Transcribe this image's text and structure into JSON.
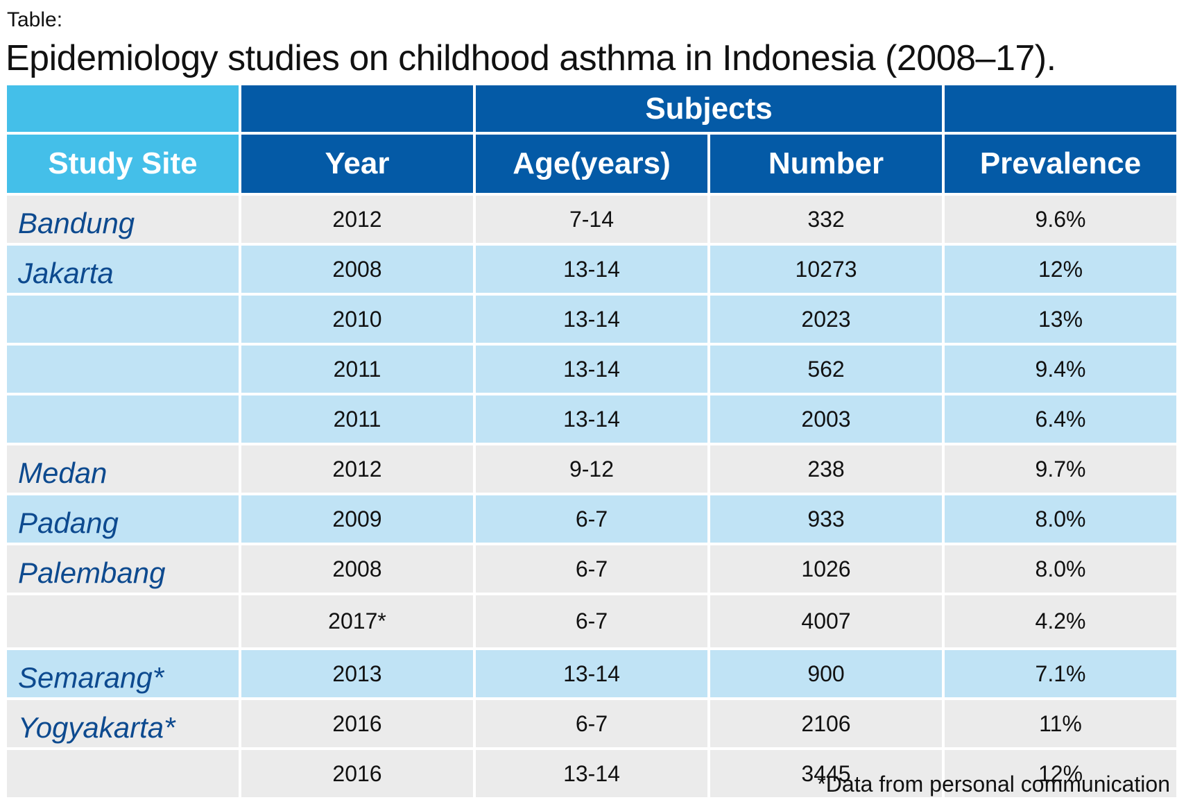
{
  "label": "Table:",
  "title": "Epidemiology studies on childhood asthma in Indonesia (2008–17).",
  "header": {
    "group_label": "Subjects",
    "columns": [
      "Study Site",
      "Year",
      "Age(years)",
      "Number",
      "Prevalence"
    ]
  },
  "rows": [
    {
      "site": "Bandung",
      "year": "2012",
      "age": "7-14",
      "number": "332",
      "prevalence": "9.6%"
    },
    {
      "site": "Jakarta",
      "year": "2008",
      "age": "13-14",
      "number": "10273",
      "prevalence": "12%"
    },
    {
      "site": "",
      "year": "2010",
      "age": "13-14",
      "number": "2023",
      "prevalence": "13%"
    },
    {
      "site": "",
      "year": "2011",
      "age": "13-14",
      "number": "562",
      "prevalence": "9.4%"
    },
    {
      "site": "",
      "year": "2011",
      "age": "13-14",
      "number": "2003",
      "prevalence": "6.4%"
    },
    {
      "site": "Medan",
      "year": "2012",
      "age": "9-12",
      "number": "238",
      "prevalence": "9.7%"
    },
    {
      "site": "Padang",
      "year": "2009",
      "age": "6-7",
      "number": "933",
      "prevalence": "8.0%"
    },
    {
      "site": "Palembang",
      "year": "2008",
      "age": "6-7",
      "number": "1026",
      "prevalence": "8.0%"
    },
    {
      "site": "",
      "year": "2017*",
      "age": "6-7",
      "number": "4007",
      "prevalence": "4.2%"
    },
    {
      "site": "Semarang*",
      "year": "2013",
      "age": "13-14",
      "number": "900",
      "prevalence": "7.1%"
    },
    {
      "site": "Yogyakarta*",
      "year": "2016",
      "age": "6-7",
      "number": "2106",
      "prevalence": "11%"
    },
    {
      "site": "",
      "year": "2016",
      "age": "13-14",
      "number": "3445",
      "prevalence": "12%"
    }
  ],
  "footnote": "*Data from personal communication",
  "colors": {
    "header_light": "#44bfe9",
    "header_dark": "#045aa6",
    "row_gray": "#ebebeb",
    "row_blue": "#c0e3f5",
    "site_text": "#0d4a8f"
  }
}
